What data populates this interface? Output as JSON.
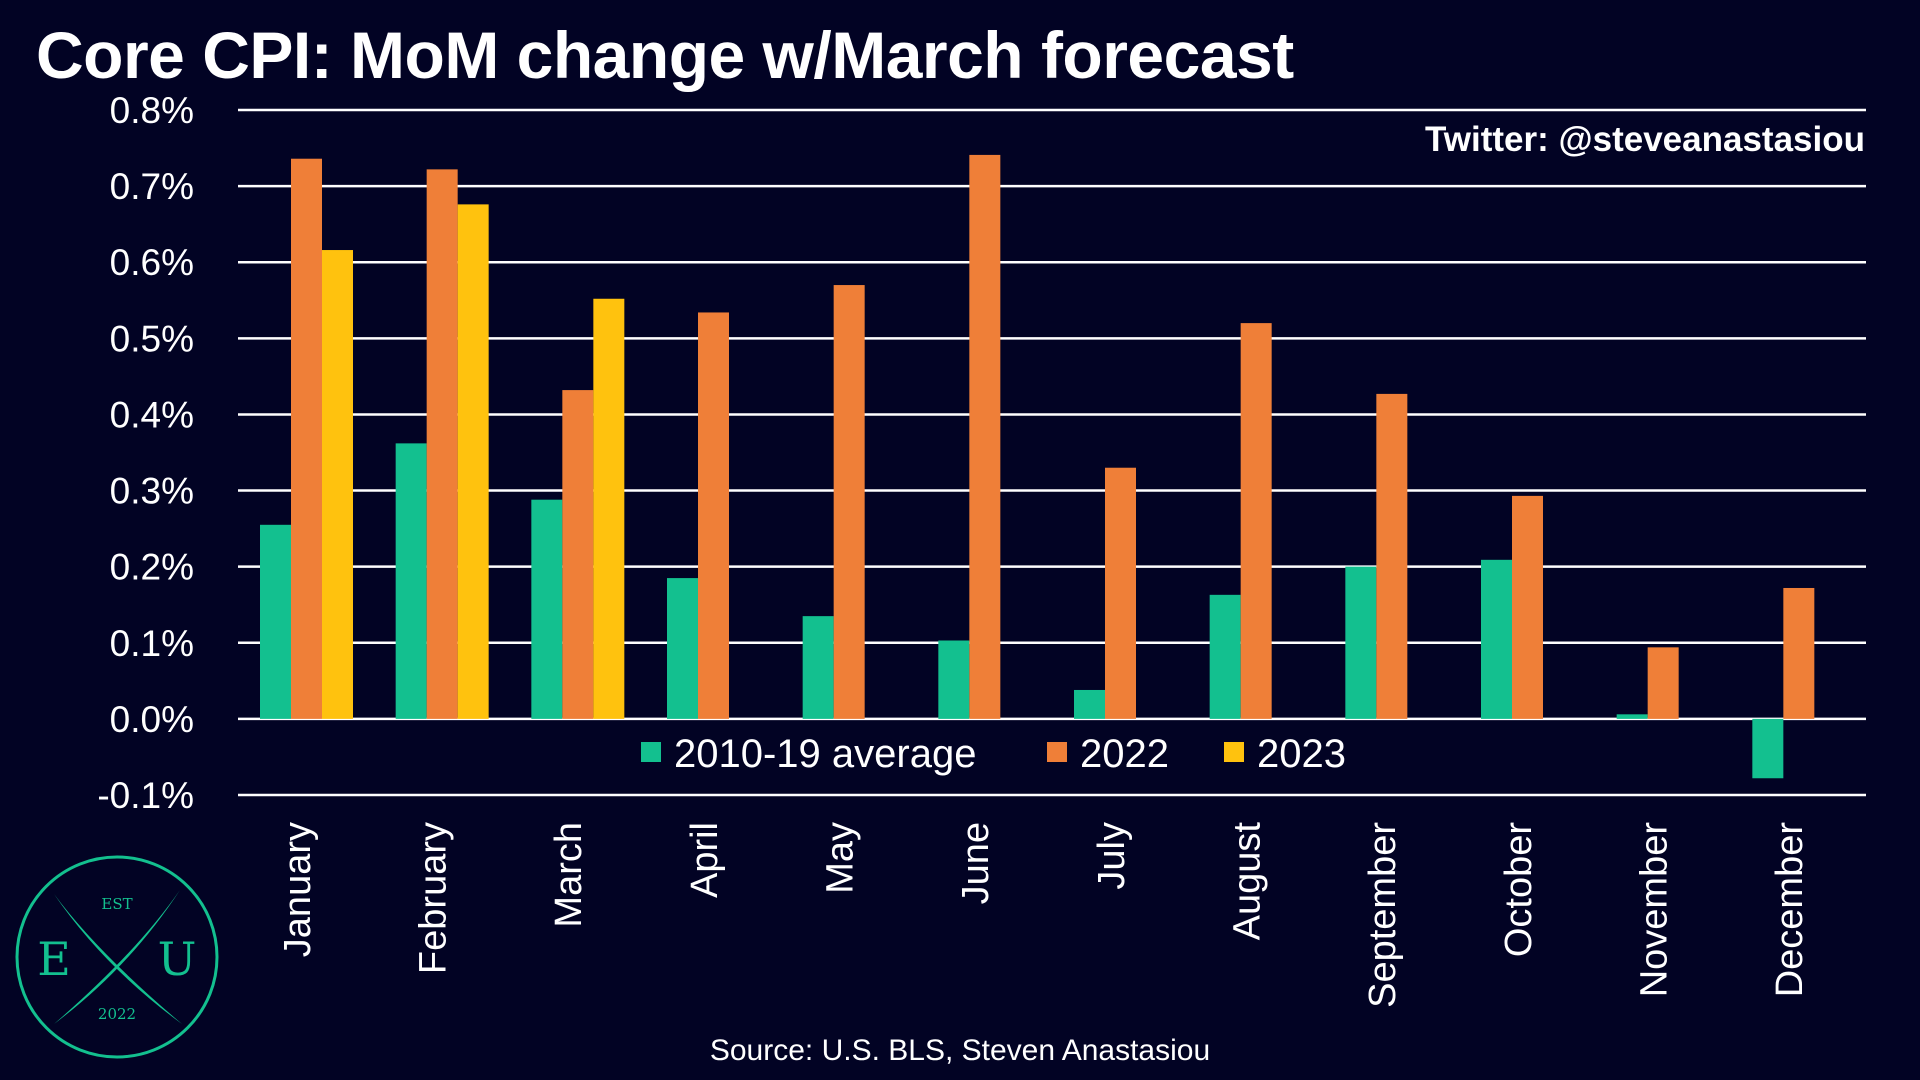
{
  "title": "Core CPI: MoM change w/March forecast",
  "handle": "Twitter: @steveanastasiou",
  "source": "Source: U.S. BLS, Steven Anastasiou",
  "logo": {
    "top": "EST",
    "left": "E",
    "right": "U",
    "bottom": "2022"
  },
  "colors": {
    "background": "#020324",
    "grid": "#ffffff"
  },
  "chart_data": {
    "type": "bar",
    "categories": [
      "January",
      "February",
      "March",
      "April",
      "May",
      "June",
      "July",
      "August",
      "September",
      "October",
      "November",
      "December"
    ],
    "series": [
      {
        "name": "2010-19 average",
        "color": "#13c08f",
        "values": [
          0.255,
          0.362,
          0.288,
          0.185,
          0.135,
          0.103,
          0.038,
          0.163,
          0.2,
          0.209,
          0.006,
          -0.078
        ]
      },
      {
        "name": "2022",
        "color": "#ef7f38",
        "values": [
          0.736,
          0.722,
          0.432,
          0.534,
          0.57,
          0.741,
          0.33,
          0.52,
          0.427,
          0.293,
          0.094,
          0.172
        ]
      },
      {
        "name": "2023",
        "color": "#ffc20e",
        "values": [
          0.616,
          0.676,
          0.552,
          null,
          null,
          null,
          null,
          null,
          null,
          null,
          null,
          null
        ]
      }
    ],
    "ylim": [
      -0.1,
      0.8
    ],
    "yticks": [
      "-0.1%",
      "0.0%",
      "0.1%",
      "0.2%",
      "0.3%",
      "0.4%",
      "0.5%",
      "0.6%",
      "0.7%",
      "0.8%"
    ],
    "xlabel": "",
    "ylabel": "",
    "grid": true,
    "legend": "bottom-center, inside plot"
  }
}
